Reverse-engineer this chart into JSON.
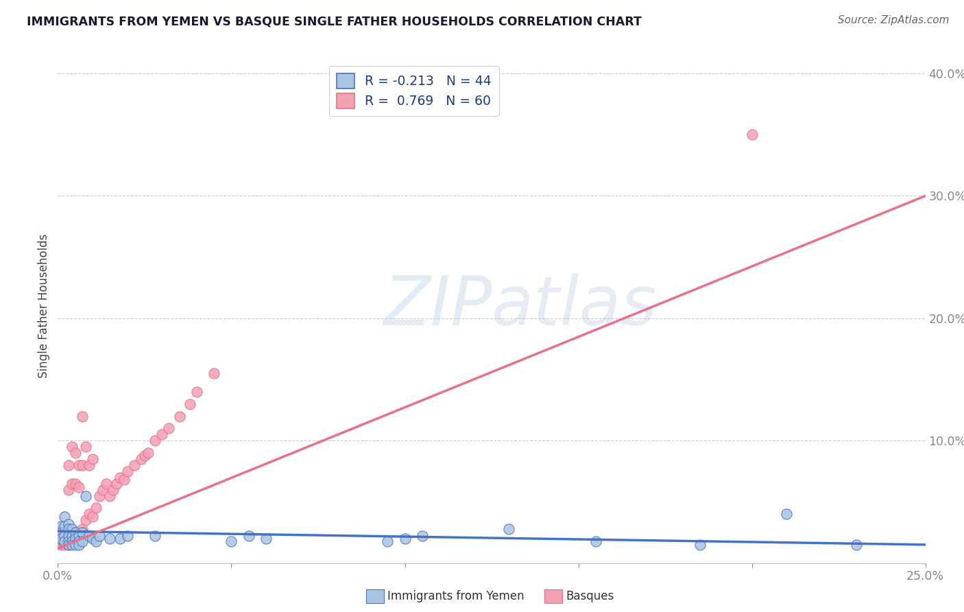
{
  "title": "IMMIGRANTS FROM YEMEN VS BASQUE SINGLE FATHER HOUSEHOLDS CORRELATION CHART",
  "source": "Source: ZipAtlas.com",
  "ylabel": "Single Father Households",
  "xlabel_legend1": "Immigrants from Yemen",
  "xlabel_legend2": "Basques",
  "legend_r1": "R = -0.213",
  "legend_n1": "N = 44",
  "legend_r2": "R =  0.769",
  "legend_n2": "N = 60",
  "xmin": 0.0,
  "xmax": 0.25,
  "ymin": 0.0,
  "ymax": 0.42,
  "yticks": [
    0.0,
    0.1,
    0.2,
    0.3,
    0.4
  ],
  "ytick_labels": [
    "",
    "10.0%",
    "20.0%",
    "30.0%",
    "40.0%"
  ],
  "xticks": [
    0.0,
    0.05,
    0.1,
    0.15,
    0.2,
    0.25
  ],
  "xtick_labels": [
    "0.0%",
    "",
    "",
    "",
    "",
    "25.0%"
  ],
  "color_blue": "#a8c4e0",
  "color_pink": "#f4a0b5",
  "line_blue": "#4472c4",
  "line_pink": "#e8708a",
  "watermark_zip": "ZIP",
  "watermark_atlas": "atlas",
  "bg_color": "#ffffff",
  "grid_color": "#cccccc",
  "scatter_blue_x": [
    0.001,
    0.001,
    0.001,
    0.002,
    0.002,
    0.002,
    0.002,
    0.003,
    0.003,
    0.003,
    0.003,
    0.003,
    0.004,
    0.004,
    0.004,
    0.004,
    0.005,
    0.005,
    0.005,
    0.006,
    0.006,
    0.006,
    0.007,
    0.007,
    0.008,
    0.009,
    0.01,
    0.011,
    0.012,
    0.015,
    0.018,
    0.02,
    0.028,
    0.05,
    0.055,
    0.06,
    0.095,
    0.1,
    0.105,
    0.13,
    0.155,
    0.185,
    0.21,
    0.23
  ],
  "scatter_blue_y": [
    0.03,
    0.025,
    0.02,
    0.038,
    0.03,
    0.022,
    0.018,
    0.032,
    0.028,
    0.022,
    0.018,
    0.015,
    0.028,
    0.022,
    0.018,
    0.015,
    0.025,
    0.02,
    0.015,
    0.022,
    0.018,
    0.015,
    0.025,
    0.018,
    0.055,
    0.022,
    0.02,
    0.018,
    0.022,
    0.02,
    0.02,
    0.022,
    0.022,
    0.018,
    0.022,
    0.02,
    0.018,
    0.02,
    0.022,
    0.028,
    0.018,
    0.015,
    0.04,
    0.015
  ],
  "scatter_pink_x": [
    0.001,
    0.001,
    0.001,
    0.001,
    0.001,
    0.002,
    0.002,
    0.002,
    0.002,
    0.002,
    0.002,
    0.003,
    0.003,
    0.003,
    0.003,
    0.003,
    0.003,
    0.004,
    0.004,
    0.004,
    0.004,
    0.004,
    0.005,
    0.005,
    0.005,
    0.005,
    0.006,
    0.006,
    0.006,
    0.007,
    0.007,
    0.007,
    0.008,
    0.008,
    0.009,
    0.009,
    0.01,
    0.01,
    0.011,
    0.012,
    0.013,
    0.014,
    0.015,
    0.016,
    0.017,
    0.018,
    0.019,
    0.02,
    0.022,
    0.024,
    0.025,
    0.026,
    0.028,
    0.03,
    0.032,
    0.035,
    0.038,
    0.04,
    0.045,
    0.2
  ],
  "scatter_pink_y": [
    0.015,
    0.018,
    0.02,
    0.022,
    0.025,
    0.015,
    0.018,
    0.02,
    0.022,
    0.025,
    0.028,
    0.015,
    0.018,
    0.022,
    0.028,
    0.06,
    0.08,
    0.018,
    0.022,
    0.025,
    0.065,
    0.095,
    0.02,
    0.025,
    0.065,
    0.09,
    0.022,
    0.062,
    0.08,
    0.028,
    0.08,
    0.12,
    0.035,
    0.095,
    0.04,
    0.08,
    0.038,
    0.085,
    0.045,
    0.055,
    0.06,
    0.065,
    0.055,
    0.06,
    0.065,
    0.07,
    0.068,
    0.075,
    0.08,
    0.085,
    0.088,
    0.09,
    0.1,
    0.105,
    0.11,
    0.12,
    0.13,
    0.14,
    0.155,
    0.35
  ],
  "pink_line_x0": 0.0,
  "pink_line_y0": 0.012,
  "pink_line_x1": 0.25,
  "pink_line_y1": 0.3,
  "blue_line_x0": 0.0,
  "blue_line_y0": 0.026,
  "blue_line_x1": 0.25,
  "blue_line_y1": 0.015
}
